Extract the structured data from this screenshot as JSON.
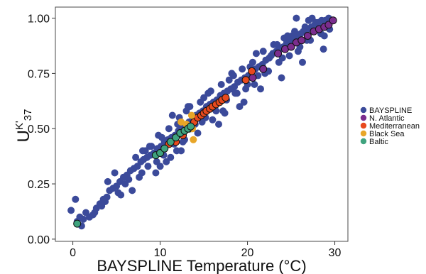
{
  "chart_data": {
    "type": "scatter",
    "xlabel": "BAYSPLINE Temperature (°C)",
    "ylabel": {
      "main": "U",
      "sup": "K'",
      "sub": "37"
    },
    "xlim": [
      -2.0,
      31.5
    ],
    "ylim": [
      -0.01,
      1.05
    ],
    "xticks": [
      0,
      10,
      20,
      30
    ],
    "yticks": [
      0.0,
      0.25,
      0.5,
      0.75,
      1.0
    ],
    "ytick_labels": [
      "0.00",
      "0.25",
      "0.50",
      "0.75",
      "1.00"
    ],
    "grid": false,
    "legend_placement": "right",
    "series": [
      {
        "name": "BAYSPLINE",
        "color": "#3b4a9a",
        "outline": false,
        "x": [
          -0.2,
          0.5,
          0.8,
          1.2,
          1.5,
          1.9,
          2.3,
          0.3,
          1.0,
          2.7,
          3.1,
          3.5,
          3.9,
          4.2,
          4.6,
          5.0,
          5.4,
          5.8,
          6.2,
          6.6,
          7.0,
          7.4,
          7.8,
          8.1,
          8.5,
          8.9,
          9.3,
          9.7,
          10.1,
          10.5,
          10.9,
          11.3,
          11.7,
          12.1,
          12.5,
          12.9,
          13.3,
          13.7,
          14.1,
          14.5,
          14.9,
          15.3,
          15.7,
          16.1,
          16.5,
          16.9,
          17.3,
          17.7,
          18.1,
          18.5,
          18.9,
          19.3,
          19.7,
          20.1,
          20.5,
          20.9,
          21.3,
          21.7,
          22.1,
          22.5,
          22.9,
          23.3,
          23.7,
          24.1,
          24.5,
          24.9,
          25.3,
          25.7,
          26.1,
          26.5,
          26.9,
          27.3,
          27.7,
          28.1,
          28.5,
          28.9,
          29.3,
          29.7,
          3.3,
          4.8,
          6.0,
          7.2,
          8.6,
          9.0,
          9.8,
          10.4,
          11.0,
          11.6,
          12.2,
          12.8,
          13.4,
          14.0,
          14.6,
          15.2,
          15.8,
          16.4,
          17.0,
          17.6,
          18.2,
          18.8,
          19.4,
          20.0,
          20.6,
          21.2,
          21.8,
          22.4,
          23.0,
          23.6,
          24.2,
          24.8,
          25.4,
          26.0,
          26.6,
          27.2,
          27.8,
          28.4,
          29.0,
          5.5,
          6.8,
          7.6,
          8.3,
          9.5,
          10.7,
          11.9,
          13.0,
          14.3,
          15.5,
          16.7,
          17.9,
          19.1,
          20.3,
          21.5,
          22.7,
          23.9,
          25.1,
          26.3,
          27.5,
          28.7,
          4.0,
          8.0,
          12.0,
          16.0,
          24.0,
          26.8,
          27.4,
          28.2,
          28.8,
          29.4,
          7.9,
          10.2,
          11.4,
          13.6,
          15.0,
          17.2,
          18.6,
          19.8,
          21.0,
          22.0,
          24.6,
          25.8,
          8.8,
          9.6,
          12.6,
          14.8,
          13.2,
          16.2,
          18.4,
          20.8,
          22.2,
          23.4,
          26.4,
          27.0,
          25.6,
          12.4,
          11.2,
          10.0,
          17.4,
          19.6,
          6.4,
          5.2,
          3.7,
          2.5
        ],
        "y": [
          0.13,
          0.08,
          0.1,
          0.09,
          0.12,
          0.1,
          0.11,
          0.18,
          0.06,
          0.14,
          0.16,
          0.18,
          0.19,
          0.22,
          0.23,
          0.24,
          0.26,
          0.28,
          0.29,
          0.31,
          0.32,
          0.33,
          0.35,
          0.36,
          0.37,
          0.38,
          0.39,
          0.41,
          0.42,
          0.44,
          0.45,
          0.46,
          0.47,
          0.49,
          0.5,
          0.51,
          0.53,
          0.54,
          0.56,
          0.57,
          0.58,
          0.6,
          0.61,
          0.62,
          0.63,
          0.65,
          0.66,
          0.67,
          0.68,
          0.69,
          0.71,
          0.72,
          0.73,
          0.74,
          0.76,
          0.77,
          0.78,
          0.79,
          0.81,
          0.82,
          0.84,
          0.85,
          0.86,
          0.87,
          0.89,
          0.9,
          0.91,
          0.92,
          0.93,
          0.94,
          0.95,
          0.96,
          0.97,
          0.98,
          0.99,
          0.99,
          1.0,
          0.99,
          0.15,
          0.3,
          0.25,
          0.37,
          0.33,
          0.42,
          0.47,
          0.38,
          0.5,
          0.43,
          0.55,
          0.45,
          0.6,
          0.52,
          0.62,
          0.55,
          0.67,
          0.58,
          0.7,
          0.63,
          0.75,
          0.66,
          0.77,
          0.7,
          0.8,
          0.74,
          0.85,
          0.76,
          0.88,
          0.8,
          0.91,
          0.83,
          0.94,
          0.87,
          0.96,
          0.9,
          0.98,
          0.93,
          0.96,
          0.2,
          0.22,
          0.28,
          0.4,
          0.3,
          0.35,
          0.4,
          0.58,
          0.48,
          0.66,
          0.52,
          0.72,
          0.6,
          0.78,
          0.68,
          0.83,
          0.73,
          0.92,
          0.8,
          0.96,
          0.86,
          0.26,
          0.4,
          0.52,
          0.54,
          0.82,
          0.9,
          1.0,
          0.96,
          0.92,
          0.95,
          0.3,
          0.46,
          0.56,
          0.5,
          0.64,
          0.58,
          0.66,
          0.68,
          0.84,
          0.75,
          0.92,
          0.85,
          0.42,
          0.35,
          0.44,
          0.53,
          0.6,
          0.61,
          0.74,
          0.7,
          0.76,
          0.88,
          0.94,
          0.99,
          1.0,
          0.4,
          0.37,
          0.33,
          0.57,
          0.62,
          0.27,
          0.21,
          0.17,
          0.12
        ]
      },
      {
        "name": "N. Atlantic",
        "color": "#7b2d8e",
        "outline": true,
        "x": [
          20.6,
          21.8,
          23.5,
          24.3,
          25.0,
          25.6,
          26.2,
          26.9,
          27.6,
          28.2,
          28.8,
          29.3,
          29.8
        ],
        "y": [
          0.73,
          0.77,
          0.84,
          0.86,
          0.87,
          0.89,
          0.9,
          0.92,
          0.94,
          0.95,
          0.96,
          0.97,
          0.99
        ]
      },
      {
        "name": "Mediterranean",
        "color": "#e8491d",
        "outline": true,
        "x": [
          11.0,
          11.8,
          12.6,
          13.3,
          13.9,
          14.3,
          14.7,
          15.0,
          15.3,
          15.7,
          16.0,
          16.4,
          16.8,
          17.1,
          17.5,
          19.8,
          20.5
        ],
        "y": [
          0.43,
          0.44,
          0.47,
          0.5,
          0.53,
          0.55,
          0.56,
          0.57,
          0.58,
          0.59,
          0.6,
          0.61,
          0.62,
          0.63,
          0.64,
          0.72,
          0.76
        ]
      },
      {
        "name": "Black Sea",
        "color": "#e8a628",
        "outline": false,
        "x": [
          13.0,
          13.7,
          13.8,
          12.4,
          13.6
        ],
        "y": [
          0.52,
          0.5,
          0.45,
          0.53,
          0.56
        ]
      },
      {
        "name": "Baltic",
        "color": "#3fa37e",
        "outline": true,
        "x": [
          0.5,
          9.5,
          10.0,
          10.5,
          11.2,
          11.8,
          12.3,
          12.8,
          13.2,
          13.5
        ],
        "y": [
          0.07,
          0.38,
          0.39,
          0.41,
          0.44,
          0.46,
          0.48,
          0.49,
          0.5,
          0.51
        ]
      }
    ]
  }
}
